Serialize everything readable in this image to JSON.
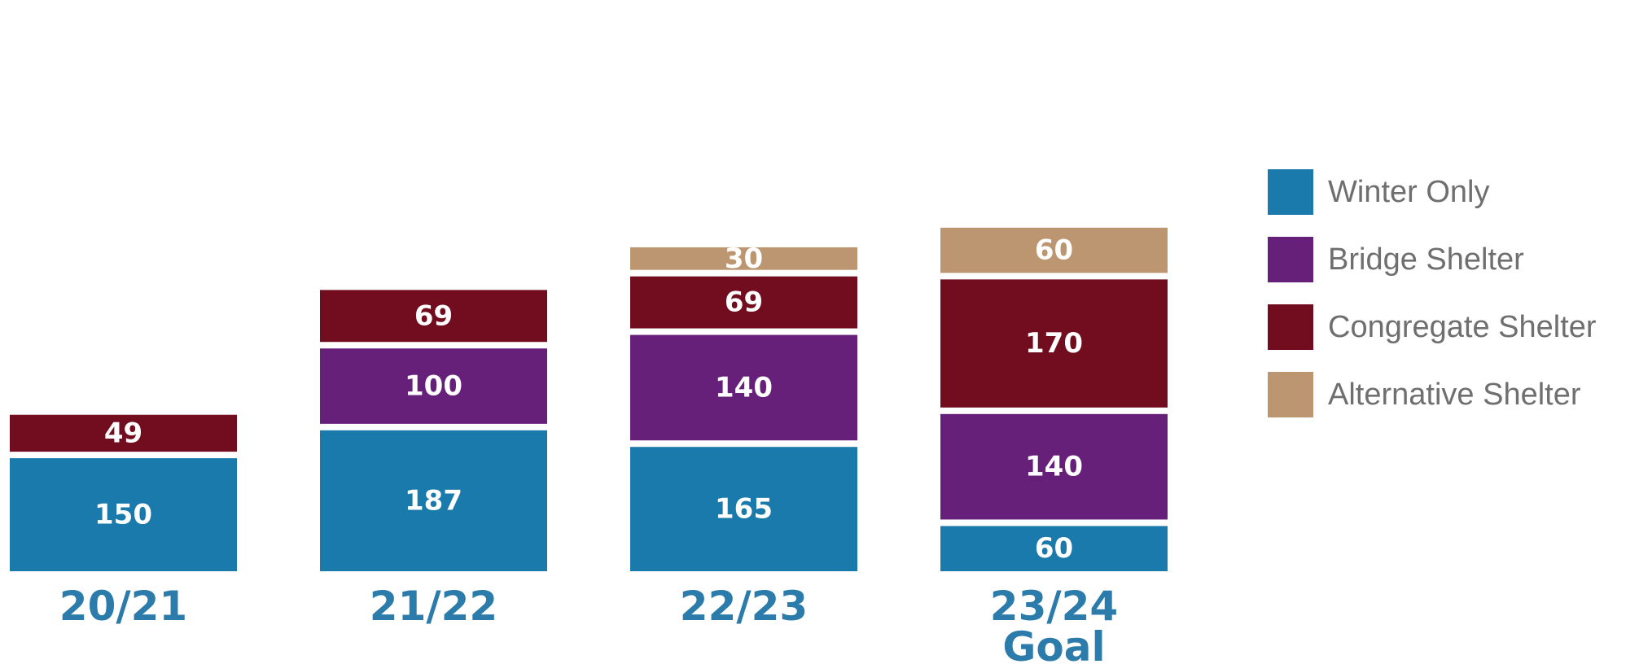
{
  "chart_data": {
    "type": "bar",
    "stacked": true,
    "title": "",
    "xlabel": "",
    "ylabel": "",
    "categories": [
      [
        "20/21"
      ],
      [
        "21/22"
      ],
      [
        "22/23"
      ],
      [
        "23/24",
        "Goal"
      ]
    ],
    "ylim": [
      0,
      430
    ],
    "grid": false,
    "legend_position": "right",
    "series": [
      {
        "name": "Winter Only",
        "color": "#1a7aab",
        "values": [
          150,
          187,
          165,
          60
        ]
      },
      {
        "name": "Bridge Shelter",
        "color": "#66207a",
        "values": [
          null,
          100,
          140,
          140
        ]
      },
      {
        "name": "Congregate Shelter",
        "color": "#720c1f",
        "values": [
          49,
          69,
          69,
          170
        ]
      },
      {
        "name": "Alternative Shelter",
        "color": "#bb9670",
        "values": [
          null,
          null,
          30,
          60
        ]
      }
    ],
    "category_label_color": "#2b7bab",
    "label_color": "#ffffff"
  }
}
